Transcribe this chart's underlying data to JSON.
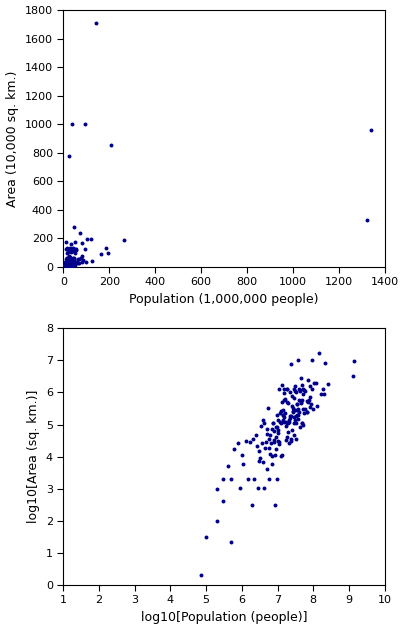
{
  "dot_color": "#00008B",
  "dot_size": 8,
  "plot1": {
    "xlabel": "Population (1,000,000 people)",
    "ylabel": "Area (10,000 sq. km.)",
    "xlim": [
      0,
      1400
    ],
    "ylim": [
      0,
      1800
    ],
    "xticks": [
      0,
      200,
      400,
      600,
      800,
      1000,
      1200,
      1400
    ],
    "yticks": [
      0,
      200,
      400,
      600,
      800,
      1000,
      1200,
      1400,
      1600,
      1800
    ]
  },
  "plot2": {
    "xlabel": "log10[Population (people)]",
    "ylabel": "log10[Area (sq. km.)]",
    "xlim": [
      1,
      10
    ],
    "ylim": [
      0,
      8
    ],
    "xticks": [
      1,
      2,
      3,
      4,
      5,
      6,
      7,
      8,
      9,
      10
    ],
    "yticks": [
      0,
      1,
      2,
      3,
      4,
      5,
      6,
      7,
      8
    ]
  },
  "countries": [
    {
      "pop_M": 1339.7,
      "area_km2": 9596960
    },
    {
      "pop_M": 1324.2,
      "area_km2": 3287263
    },
    {
      "pop_M": 263.0,
      "area_km2": 1904569
    },
    {
      "pop_M": 207.7,
      "area_km2": 8515767
    },
    {
      "pop_M": 194.1,
      "area_km2": 923768
    },
    {
      "pop_M": 186.0,
      "area_km2": 1284000
    },
    {
      "pop_M": 162.0,
      "area_km2": 881913
    },
    {
      "pop_M": 144.3,
      "area_km2": 17098242
    },
    {
      "pop_M": 127.0,
      "area_km2": 377930
    },
    {
      "pop_M": 122.3,
      "area_km2": 1964375
    },
    {
      "pop_M": 105.0,
      "area_km2": 1972550
    },
    {
      "pop_M": 96.7,
      "area_km2": 300000
    },
    {
      "pop_M": 94.0,
      "area_km2": 9984670
    },
    {
      "pop_M": 93.4,
      "area_km2": 1246700
    },
    {
      "pop_M": 83.7,
      "area_km2": 438317
    },
    {
      "pop_M": 82.2,
      "area_km2": 357114
    },
    {
      "pop_M": 80.3,
      "area_km2": 1648195
    },
    {
      "pop_M": 79.5,
      "area_km2": 745095
    },
    {
      "pop_M": 75.1,
      "area_km2": 603550
    },
    {
      "pop_M": 71.4,
      "area_km2": 2381741
    },
    {
      "pop_M": 68.9,
      "area_km2": 513120
    },
    {
      "pop_M": 67.0,
      "area_km2": 243610
    },
    {
      "pop_M": 65.7,
      "area_km2": 551500
    },
    {
      "pop_M": 64.7,
      "area_km2": 241930
    },
    {
      "pop_M": 60.5,
      "area_km2": 301340
    },
    {
      "pop_M": 57.0,
      "area_km2": 1141748
    },
    {
      "pop_M": 55.0,
      "area_km2": 1221037
    },
    {
      "pop_M": 52.4,
      "area_km2": 1267000
    },
    {
      "pop_M": 51.2,
      "area_km2": 99720
    },
    {
      "pop_M": 48.6,
      "area_km2": 1759540
    },
    {
      "pop_M": 48.2,
      "area_km2": 580367
    },
    {
      "pop_M": 47.6,
      "area_km2": 112492
    },
    {
      "pop_M": 46.4,
      "area_km2": 505370
    },
    {
      "pop_M": 44.3,
      "area_km2": 2780400
    },
    {
      "pop_M": 43.2,
      "area_km2": 1104300
    },
    {
      "pop_M": 41.3,
      "area_km2": 83858
    },
    {
      "pop_M": 40.5,
      "area_km2": 238533
    },
    {
      "pop_M": 39.9,
      "area_km2": 1285216
    },
    {
      "pop_M": 37.1,
      "area_km2": 9984670
    },
    {
      "pop_M": 37.0,
      "area_km2": 150000
    },
    {
      "pop_M": 35.6,
      "area_km2": 447400
    },
    {
      "pop_M": 34.9,
      "area_km2": 447400
    },
    {
      "pop_M": 33.9,
      "area_km2": 196722
    },
    {
      "pop_M": 33.1,
      "area_km2": 1030700
    },
    {
      "pop_M": 32.4,
      "area_km2": 185180
    },
    {
      "pop_M": 32.0,
      "area_km2": 114763
    },
    {
      "pop_M": 31.5,
      "area_km2": 1566500
    },
    {
      "pop_M": 30.9,
      "area_km2": 1141748
    },
    {
      "pop_M": 29.8,
      "area_km2": 274200
    },
    {
      "pop_M": 29.3,
      "area_km2": 1285216
    },
    {
      "pop_M": 28.3,
      "area_km2": 174000
    },
    {
      "pop_M": 28.0,
      "area_km2": 111369
    },
    {
      "pop_M": 26.7,
      "area_km2": 238533
    },
    {
      "pop_M": 26.4,
      "area_km2": 322463
    },
    {
      "pop_M": 25.2,
      "area_km2": 752612
    },
    {
      "pop_M": 24.5,
      "area_km2": 30355
    },
    {
      "pop_M": 24.2,
      "area_km2": 7741220
    },
    {
      "pop_M": 23.3,
      "area_km2": 36125
    },
    {
      "pop_M": 22.1,
      "area_km2": 163610
    },
    {
      "pop_M": 21.0,
      "area_km2": 143100
    },
    {
      "pop_M": 20.4,
      "area_km2": 118484
    },
    {
      "pop_M": 19.5,
      "area_km2": 56785
    },
    {
      "pop_M": 18.6,
      "area_km2": 1240192
    },
    {
      "pop_M": 18.6,
      "area_km2": 1267000
    },
    {
      "pop_M": 18.5,
      "area_km2": 488100
    },
    {
      "pop_M": 17.9,
      "area_km2": 41285
    },
    {
      "pop_M": 17.0,
      "area_km2": 92090
    },
    {
      "pop_M": 16.7,
      "area_km2": 32145
    },
    {
      "pop_M": 16.0,
      "area_km2": 638317
    },
    {
      "pop_M": 15.6,
      "area_km2": 1284000
    },
    {
      "pop_M": 15.4,
      "area_km2": 120538
    },
    {
      "pop_M": 14.9,
      "area_km2": 945087
    },
    {
      "pop_M": 14.8,
      "area_km2": 581730
    },
    {
      "pop_M": 14.5,
      "area_km2": 274000
    },
    {
      "pop_M": 14.2,
      "area_km2": 140000
    },
    {
      "pop_M": 13.9,
      "area_km2": 196722
    },
    {
      "pop_M": 13.2,
      "area_km2": 1759540
    },
    {
      "pop_M": 12.9,
      "area_km2": 517052
    },
    {
      "pop_M": 12.5,
      "area_km2": 267668
    },
    {
      "pop_M": 12.3,
      "area_km2": 112622
    },
    {
      "pop_M": 12.1,
      "area_km2": 10452
    },
    {
      "pop_M": 11.5,
      "area_km2": 118484
    },
    {
      "pop_M": 11.2,
      "area_km2": 27750
    },
    {
      "pop_M": 11.0,
      "area_km2": 1240192
    },
    {
      "pop_M": 10.5,
      "area_km2": 65300
    },
    {
      "pop_M": 10.4,
      "area_km2": 143100
    },
    {
      "pop_M": 10.2,
      "area_km2": 30355
    },
    {
      "pop_M": 9.8,
      "area_km2": 84000
    },
    {
      "pop_M": 9.6,
      "area_km2": 196722
    },
    {
      "pop_M": 9.5,
      "area_km2": 2040
    },
    {
      "pop_M": 9.3,
      "area_km2": 41285
    },
    {
      "pop_M": 8.9,
      "area_km2": 84000
    },
    {
      "pop_M": 8.7,
      "area_km2": 300
    },
    {
      "pop_M": 8.5,
      "area_km2": 11300
    },
    {
      "pop_M": 7.9,
      "area_km2": 28051
    },
    {
      "pop_M": 7.7,
      "area_km2": 63854
    },
    {
      "pop_M": 7.6,
      "area_km2": 108889
    },
    {
      "pop_M": 7.4,
      "area_km2": 112622
    },
    {
      "pop_M": 7.0,
      "area_km2": 5765
    },
    {
      "pop_M": 6.8,
      "area_km2": 10452
    },
    {
      "pop_M": 6.5,
      "area_km2": 26338
    },
    {
      "pop_M": 6.3,
      "area_km2": 11720
    },
    {
      "pop_M": 5.9,
      "area_km2": 2040
    },
    {
      "pop_M": 5.8,
      "area_km2": 19000
    },
    {
      "pop_M": 5.6,
      "area_km2": 34280
    },
    {
      "pop_M": 5.4,
      "area_km2": 338858
    },
    {
      "pop_M": 5.1,
      "area_km2": 51197
    },
    {
      "pop_M": 4.9,
      "area_km2": 4033
    },
    {
      "pop_M": 4.7,
      "area_km2": 28051
    },
    {
      "pop_M": 4.5,
      "area_km2": 18272
    },
    {
      "pop_M": 4.3,
      "area_km2": 1030
    },
    {
      "pop_M": 4.2,
      "area_km2": 111369
    },
    {
      "pop_M": 3.8,
      "area_km2": 143100
    },
    {
      "pop_M": 3.6,
      "area_km2": 25713
    },
    {
      "pop_M": 3.4,
      "area_km2": 91000
    },
    {
      "pop_M": 3.2,
      "area_km2": 9250
    },
    {
      "pop_M": 3.1,
      "area_km2": 7170
    },
    {
      "pop_M": 2.9,
      "area_km2": 1030
    },
    {
      "pop_M": 2.7,
      "area_km2": 20750
    },
    {
      "pop_M": 2.5,
      "area_km2": 48778
    },
    {
      "pop_M": 2.2,
      "area_km2": 2040
    },
    {
      "pop_M": 1.9,
      "area_km2": 300
    },
    {
      "pop_M": 1.7,
      "area_km2": 28051
    },
    {
      "pop_M": 1.5,
      "area_km2": 2040
    },
    {
      "pop_M": 1.3,
      "area_km2": 30355
    },
    {
      "pop_M": 1.1,
      "area_km2": 5765
    },
    {
      "pop_M": 0.9,
      "area_km2": 1030
    },
    {
      "pop_M": 0.5,
      "area_km2": 21
    },
    {
      "pop_M": 0.5,
      "area_km2": 2040
    },
    {
      "pop_M": 0.3,
      "area_km2": 400
    },
    {
      "pop_M": 0.2,
      "area_km2": 100
    },
    {
      "pop_M": 0.1,
      "area_km2": 30
    },
    {
      "pop_M": 0.07,
      "area_km2": 2
    },
    {
      "pop_M": 54.0,
      "area_km2": 236040
    },
    {
      "pop_M": 52.5,
      "area_km2": 923768
    },
    {
      "pop_M": 50.1,
      "area_km2": 312685
    },
    {
      "pop_M": 47.7,
      "area_km2": 108436
    },
    {
      "pop_M": 45.4,
      "area_km2": 457000
    },
    {
      "pop_M": 43.5,
      "area_km2": 1221037
    },
    {
      "pop_M": 40.3,
      "area_km2": 581730
    },
    {
      "pop_M": 38.0,
      "area_km2": 312685
    },
    {
      "pop_M": 36.3,
      "area_km2": 196722
    },
    {
      "pop_M": 34.0,
      "area_km2": 274200
    },
    {
      "pop_M": 33.0,
      "area_km2": 36125
    },
    {
      "pop_M": 30.5,
      "area_km2": 143100
    },
    {
      "pop_M": 29.5,
      "area_km2": 48145
    },
    {
      "pop_M": 28.7,
      "area_km2": 678500
    },
    {
      "pop_M": 27.5,
      "area_km2": 267668
    },
    {
      "pop_M": 26.0,
      "area_km2": 65300
    },
    {
      "pop_M": 25.0,
      "area_km2": 388757
    },
    {
      "pop_M": 23.5,
      "area_km2": 181040
    },
    {
      "pop_M": 22.8,
      "area_km2": 181040
    },
    {
      "pop_M": 22.2,
      "area_km2": 1030700
    },
    {
      "pop_M": 21.5,
      "area_km2": 27000
    },
    {
      "pop_M": 20.0,
      "area_km2": 462000
    },
    {
      "pop_M": 19.0,
      "area_km2": 113000
    },
    {
      "pop_M": 18.0,
      "area_km2": 111369
    },
    {
      "pop_M": 17.5,
      "area_km2": 124000
    },
    {
      "pop_M": 16.5,
      "area_km2": 236040
    },
    {
      "pop_M": 15.0,
      "area_km2": 176000
    },
    {
      "pop_M": 14.0,
      "area_km2": 196722
    },
    {
      "pop_M": 13.0,
      "area_km2": 11000
    },
    {
      "pop_M": 12.0,
      "area_km2": 236040
    },
    {
      "pop_M": 11.0,
      "area_km2": 25000
    },
    {
      "pop_M": 10.0,
      "area_km2": 56000
    },
    {
      "pop_M": 9.0,
      "area_km2": 17000
    },
    {
      "pop_M": 8.0,
      "area_km2": 33000
    },
    {
      "pop_M": 7.0,
      "area_km2": 74000
    },
    {
      "pop_M": 6.0,
      "area_km2": 48000
    },
    {
      "pop_M": 5.0,
      "area_km2": 70000
    },
    {
      "pop_M": 4.0,
      "area_km2": 7000
    },
    {
      "pop_M": 3.0,
      "area_km2": 15000
    },
    {
      "pop_M": 2.0,
      "area_km2": 36000
    },
    {
      "pop_M": 1.0,
      "area_km2": 11000
    },
    {
      "pop_M": 0.8,
      "area_km2": 26000
    },
    {
      "pop_M": 0.6,
      "area_km2": 17000
    },
    {
      "pop_M": 0.4,
      "area_km2": 5000
    },
    {
      "pop_M": 0.3,
      "area_km2": 2000
    },
    {
      "pop_M": 0.2,
      "area_km2": 1000
    }
  ]
}
